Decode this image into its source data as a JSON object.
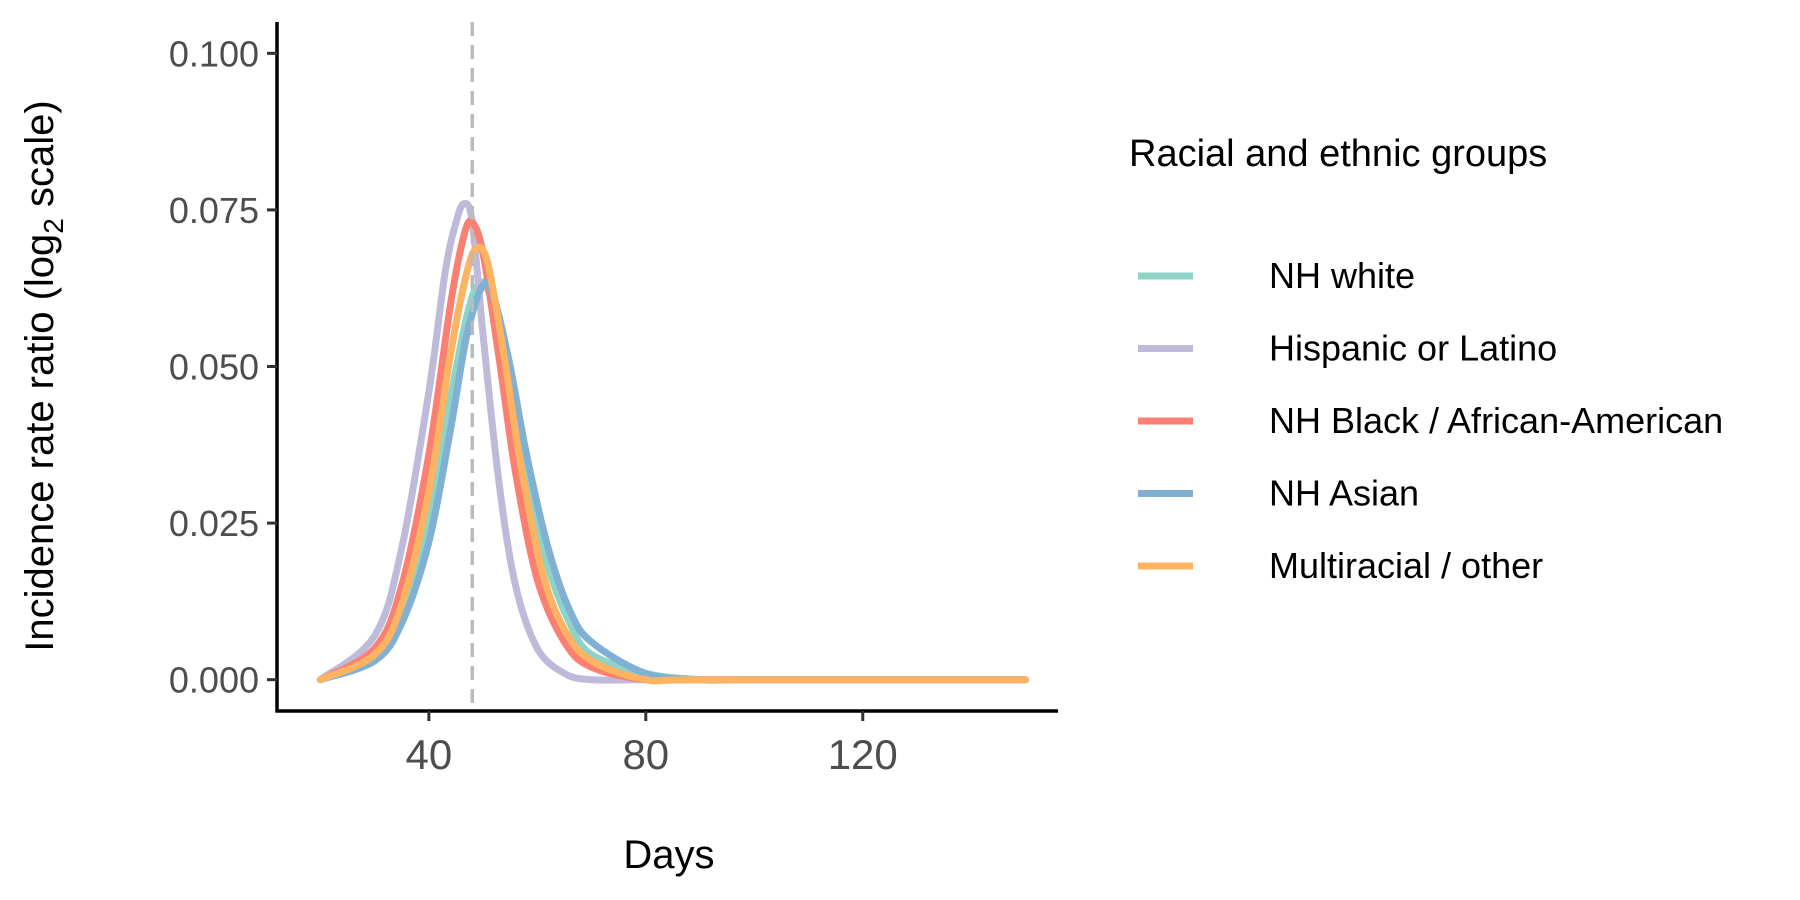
{
  "chart_data": {
    "type": "line",
    "title": "",
    "xlabel": "Days",
    "ylabel": {
      "main": "Incidence rate ratio (log",
      "subscript": "2",
      "suffix": " scale)"
    },
    "x_ticks": [
      40,
      80,
      120
    ],
    "y_ticks": [
      "0.000",
      "0.025",
      "0.050",
      "0.075",
      "0.100"
    ],
    "xlim": [
      12,
      156
    ],
    "ylim": [
      -0.005,
      0.105
    ],
    "vline": {
      "x": 48,
      "style": "dashed",
      "color": "#bbbbbb"
    },
    "grid": false,
    "legend": {
      "title": "Racial and ethnic groups",
      "position": "right"
    },
    "series": [
      {
        "name": "NH white",
        "color": "#8dd3c7",
        "x": [
          20,
          30,
          35,
          40,
          44,
          47,
          49,
          51,
          54,
          58,
          62,
          66,
          70,
          80,
          90,
          100,
          150
        ],
        "y": [
          0.0,
          0.004,
          0.011,
          0.026,
          0.045,
          0.058,
          0.063,
          0.062,
          0.051,
          0.032,
          0.018,
          0.009,
          0.004,
          0.001,
          0.0,
          0.0,
          0.0
        ]
      },
      {
        "name": "Hispanic or Latino",
        "color": "#bebada",
        "x": [
          20,
          30,
          35,
          40,
          43,
          45,
          46.5,
          48,
          50,
          53,
          56,
          60,
          65,
          70,
          80,
          90,
          150
        ],
        "y": [
          0.0,
          0.007,
          0.021,
          0.046,
          0.065,
          0.073,
          0.076,
          0.073,
          0.055,
          0.031,
          0.015,
          0.005,
          0.001,
          0.0,
          0.0,
          0.0,
          0.0
        ]
      },
      {
        "name": "NH Black / African-American",
        "color": "#fb8072",
        "x": [
          20,
          30,
          35,
          40,
          44,
          46.5,
          48,
          50,
          53,
          56,
          60,
          65,
          70,
          80,
          90,
          150
        ],
        "y": [
          0.0,
          0.005,
          0.015,
          0.036,
          0.06,
          0.071,
          0.073,
          0.068,
          0.051,
          0.033,
          0.016,
          0.006,
          0.002,
          0.0,
          0.0,
          0.0
        ]
      },
      {
        "name": "NH Asian",
        "color": "#80b1d3",
        "x": [
          20,
          30,
          35,
          40,
          44,
          47,
          50,
          52,
          55,
          58,
          62,
          66,
          70,
          80,
          90,
          100,
          150
        ],
        "y": [
          0.0,
          0.003,
          0.009,
          0.022,
          0.04,
          0.055,
          0.063,
          0.061,
          0.05,
          0.036,
          0.021,
          0.011,
          0.006,
          0.001,
          0.0,
          0.0,
          0.0
        ]
      },
      {
        "name": "Multiracial / other",
        "color": "#fdb462",
        "x": [
          20,
          30,
          35,
          40,
          44,
          47,
          49,
          51,
          54,
          57,
          61,
          65,
          70,
          80,
          90,
          150
        ],
        "y": [
          0.0,
          0.004,
          0.012,
          0.03,
          0.052,
          0.065,
          0.069,
          0.066,
          0.051,
          0.034,
          0.017,
          0.008,
          0.003,
          0.0,
          0.0,
          0.0
        ]
      }
    ]
  }
}
